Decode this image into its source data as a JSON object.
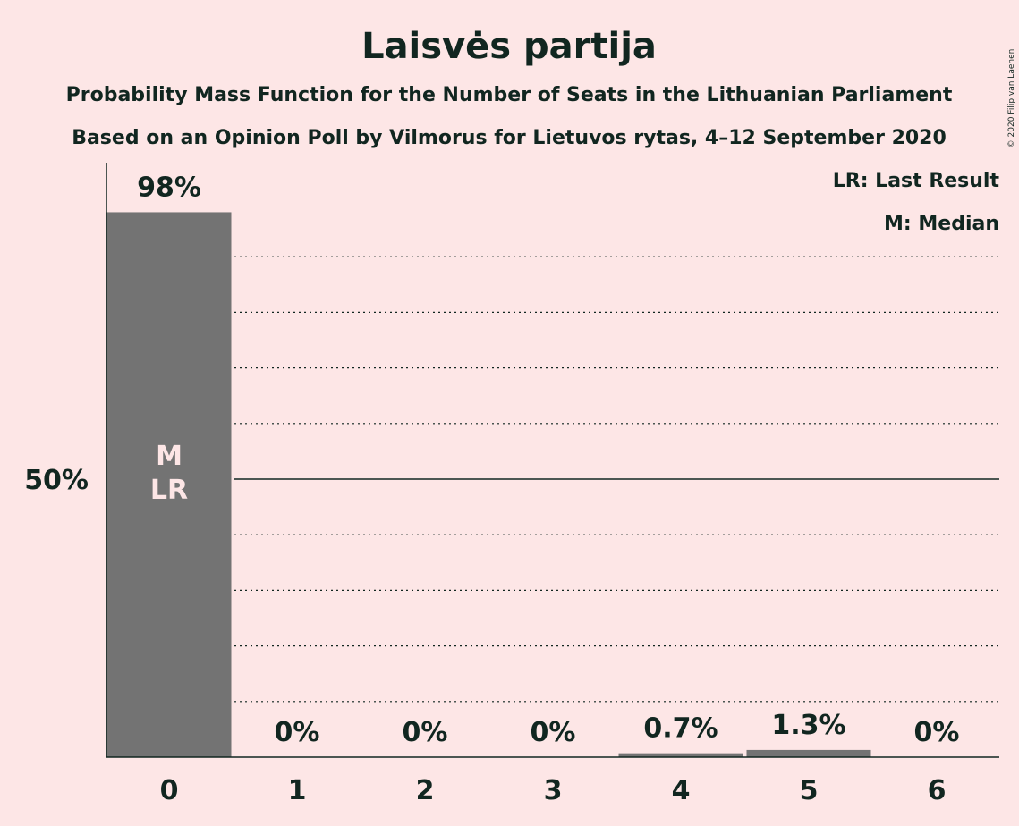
{
  "title": "Laisvės partija",
  "subtitle_line1": "Probability Mass Function for the Number of Seats in the Lithuanian Parliament",
  "subtitle_line2": "Based on an Opinion Poll by Vilmorus for Lietuvos rytas, 4–12 September 2020",
  "legend": {
    "last_result": "LR: Last Result",
    "median": "M: Median"
  },
  "copyright": "© 2020 Filip van Laenen",
  "colors": {
    "background": "#fde6e6",
    "bar": "#737373",
    "text": "#112620",
    "inbar_text": "#fde6e6"
  },
  "chart_data": {
    "type": "bar",
    "categories": [
      "0",
      "1",
      "2",
      "3",
      "4",
      "5",
      "6"
    ],
    "values": [
      98,
      0,
      0,
      0,
      0.7,
      1.3,
      0
    ],
    "data_labels": [
      "98%",
      "0%",
      "0%",
      "0%",
      "0.7%",
      "1.3%",
      "0%"
    ],
    "median_index": 0,
    "last_result_index": 0,
    "median_marker": "M",
    "last_result_marker": "LR",
    "y_tick_label": "50%",
    "y_tick_value": 50,
    "ylim": [
      0,
      100
    ],
    "grid": "dotted every 10%, solid at 50%",
    "legend_position": "top-right"
  }
}
